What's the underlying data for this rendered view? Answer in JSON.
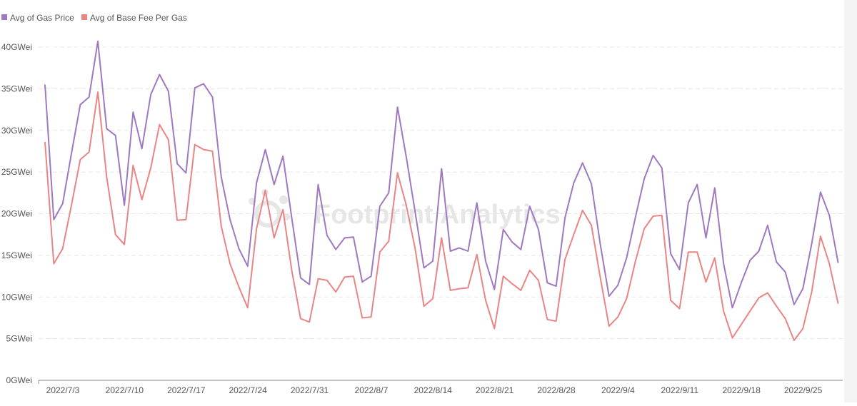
{
  "colors": {
    "gas_price": "#9f79c0",
    "base_fee": "#e98585",
    "axis_text": "#555555",
    "grid": "#e8e8e8",
    "axis_line": "#888888",
    "watermark": "#e6e6e6"
  },
  "watermark": {
    "text": "Footprint Analytics",
    "icon": "footprint-logo-icon"
  },
  "chart_data": {
    "type": "line",
    "legend_position": "top-left",
    "grid": true,
    "ylim": [
      0,
      40
    ],
    "y_ticks": [
      0,
      5,
      10,
      15,
      20,
      25,
      30,
      35,
      40
    ],
    "y_tick_labels": [
      "0GWei",
      "5GWei",
      "10GWei",
      "15GWei",
      "20GWei",
      "25GWei",
      "30GWei",
      "35GWei",
      "40GWei"
    ],
    "x_tick_labels": [
      {
        "label": "2022/7/3",
        "index": 0
      },
      {
        "label": "2022/7/10",
        "index": 7
      },
      {
        "label": "2022/7/17",
        "index": 14
      },
      {
        "label": "2022/7/24",
        "index": 21
      },
      {
        "label": "2022/7/31",
        "index": 28
      },
      {
        "label": "2022/8/7",
        "index": 35
      },
      {
        "label": "2022/8/14",
        "index": 42
      },
      {
        "label": "2022/8/21",
        "index": 49
      },
      {
        "label": "2022/8/28",
        "index": 56
      },
      {
        "label": "2022/9/4",
        "index": 63
      },
      {
        "label": "2022/9/11",
        "index": 70
      },
      {
        "label": "2022/9/18",
        "index": 77
      },
      {
        "label": "2022/9/25",
        "index": 84
      }
    ],
    "x_start": "2022/7/1",
    "x_end": "2022/9/29",
    "series": [
      {
        "name": "Avg of Gas Price",
        "color": "#9f79c0",
        "values": [
          35.5,
          19.3,
          21.2,
          27.2,
          33.1,
          34.0,
          40.7,
          30.2,
          29.4,
          21.0,
          32.2,
          27.8,
          34.3,
          36.7,
          34.7,
          26.0,
          24.9,
          35.1,
          35.6,
          34.0,
          24.4,
          19.3,
          15.8,
          13.7,
          23.7,
          27.7,
          23.5,
          26.9,
          19.5,
          12.3,
          11.5,
          23.5,
          17.4,
          15.7,
          17.1,
          17.2,
          11.8,
          12.5,
          20.9,
          22.5,
          32.8,
          26.8,
          20.2,
          13.5,
          14.3,
          25.4,
          15.5,
          15.9,
          15.5,
          21.3,
          14.3,
          10.9,
          18.1,
          16.6,
          15.7,
          20.9,
          18.1,
          11.7,
          11.3,
          19.5,
          23.7,
          26.1,
          23.6,
          16.4,
          10.1,
          11.4,
          14.7,
          19.6,
          24.2,
          27.0,
          25.5,
          15.2,
          13.3,
          21.3,
          23.5,
          17.1,
          23.1,
          14.0,
          8.7,
          11.7,
          14.4,
          15.5,
          18.6,
          14.2,
          13.0,
          9.1,
          11.0,
          16.4,
          22.6,
          19.8,
          14.1
        ]
      },
      {
        "name": "Avg of Base Fee Per Gas",
        "color": "#e98585",
        "values": [
          28.6,
          14.0,
          15.8,
          21.0,
          26.5,
          27.4,
          34.6,
          24.4,
          17.5,
          16.3,
          25.8,
          21.7,
          25.5,
          30.7,
          28.9,
          19.2,
          19.3,
          28.3,
          27.7,
          27.5,
          18.5,
          14.0,
          11.2,
          8.7,
          18.2,
          22.8,
          17.1,
          20.5,
          13.2,
          7.4,
          7.0,
          12.2,
          12.0,
          10.6,
          12.4,
          12.5,
          7.5,
          7.6,
          15.4,
          16.7,
          24.9,
          21.0,
          15.8,
          8.9,
          9.8,
          17.1,
          10.8,
          11.0,
          11.1,
          15.1,
          9.6,
          6.2,
          12.5,
          11.6,
          10.8,
          13.2,
          12.0,
          7.3,
          7.1,
          14.5,
          17.5,
          20.4,
          18.6,
          12.4,
          6.5,
          7.6,
          9.8,
          14.3,
          18.2,
          19.7,
          19.8,
          9.6,
          8.6,
          15.4,
          15.4,
          11.8,
          14.7,
          8.3,
          5.1,
          6.7,
          8.3,
          9.9,
          10.5,
          8.9,
          7.4,
          4.8,
          6.2,
          10.6,
          17.3,
          14.0,
          9.2
        ]
      }
    ]
  }
}
